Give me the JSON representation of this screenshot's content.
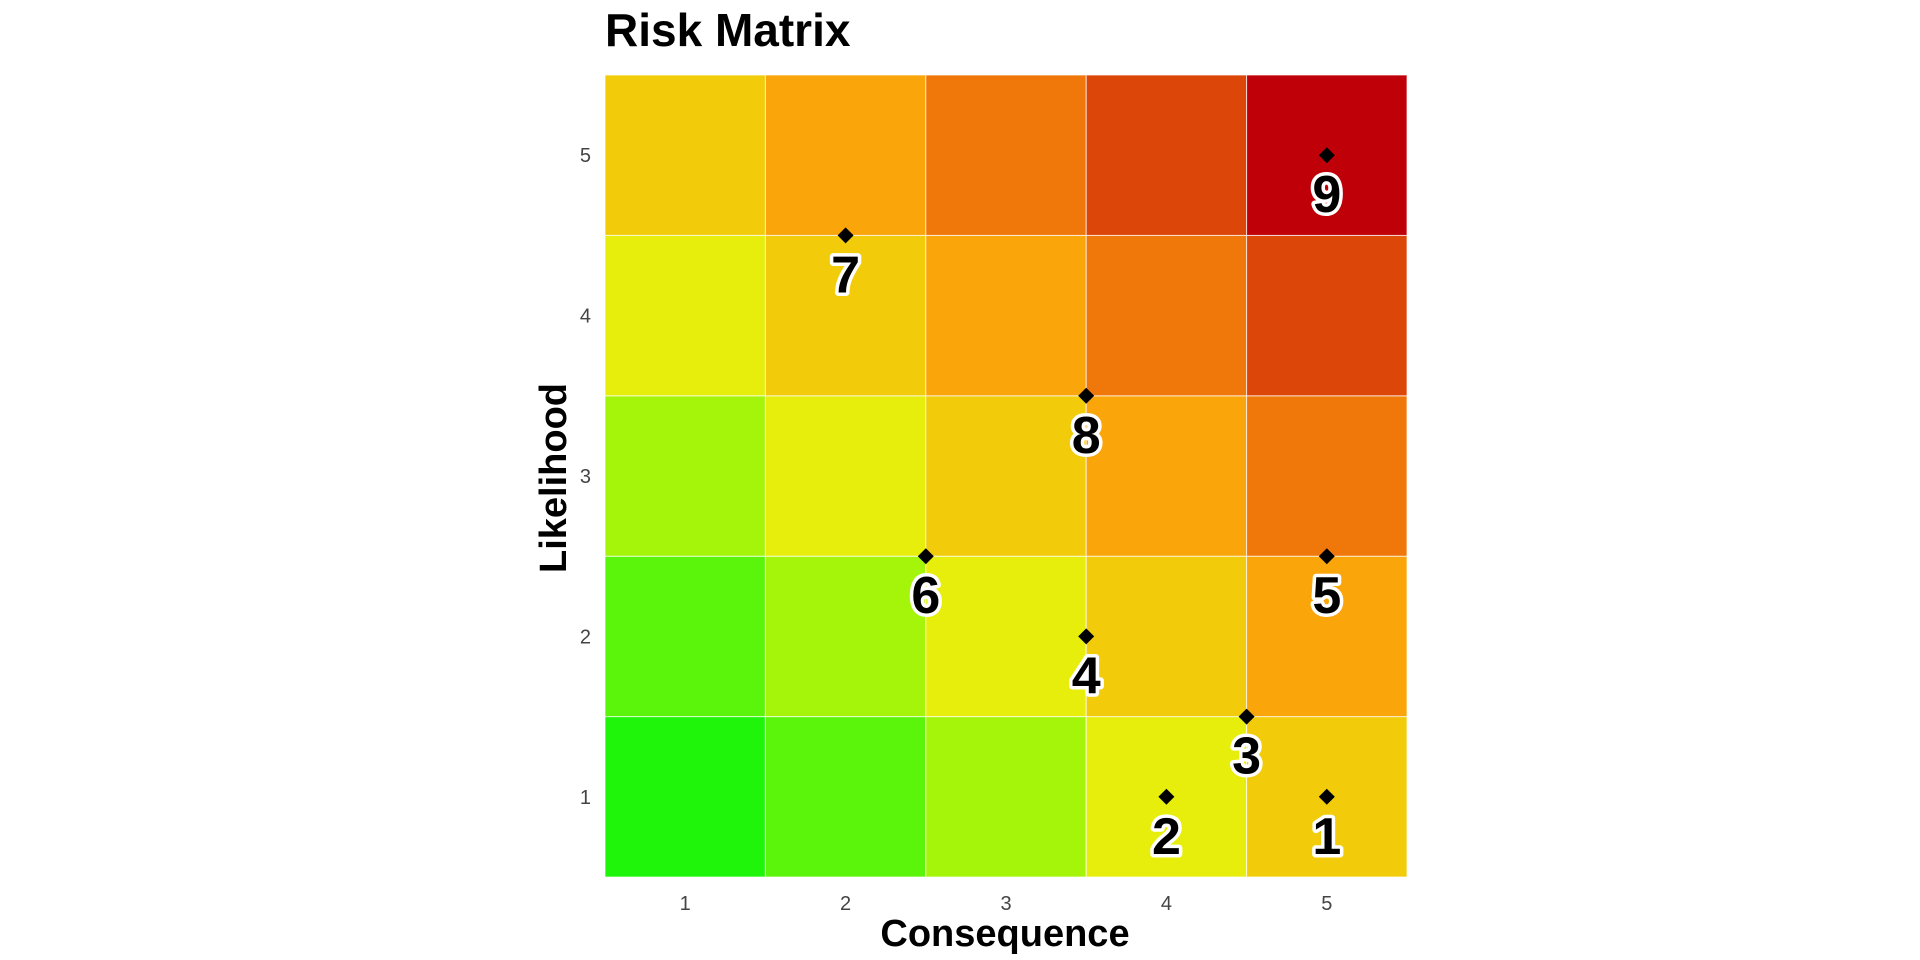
{
  "chart_data": {
    "type": "heatmap",
    "title": "Risk Matrix",
    "xlabel": "Consequence",
    "ylabel": "Likelihood",
    "x_categories": [
      "1",
      "2",
      "3",
      "4",
      "5"
    ],
    "y_categories": [
      "1",
      "2",
      "3",
      "4",
      "5"
    ],
    "xlim": [
      0.5,
      5.5
    ],
    "ylim": [
      0.5,
      5.5
    ],
    "grid": false,
    "cells": [
      {
        "x": 1,
        "y": 1,
        "color": "#1ef50a"
      },
      {
        "x": 2,
        "y": 1,
        "color": "#5af50a"
      },
      {
        "x": 3,
        "y": 1,
        "color": "#a5f50a"
      },
      {
        "x": 4,
        "y": 1,
        "color": "#e8ee0c"
      },
      {
        "x": 5,
        "y": 1,
        "color": "#f2cc0b"
      },
      {
        "x": 1,
        "y": 2,
        "color": "#5af50a"
      },
      {
        "x": 2,
        "y": 2,
        "color": "#a5f50a"
      },
      {
        "x": 3,
        "y": 2,
        "color": "#e8ee0c"
      },
      {
        "x": 4,
        "y": 2,
        "color": "#f2cc0b"
      },
      {
        "x": 5,
        "y": 2,
        "color": "#faa50a"
      },
      {
        "x": 1,
        "y": 3,
        "color": "#a5f50a"
      },
      {
        "x": 2,
        "y": 3,
        "color": "#e8ee0c"
      },
      {
        "x": 3,
        "y": 3,
        "color": "#f2cc0b"
      },
      {
        "x": 4,
        "y": 3,
        "color": "#faa50a"
      },
      {
        "x": 5,
        "y": 3,
        "color": "#f0780a"
      },
      {
        "x": 1,
        "y": 4,
        "color": "#e8ee0c"
      },
      {
        "x": 2,
        "y": 4,
        "color": "#f2cc0b"
      },
      {
        "x": 3,
        "y": 4,
        "color": "#faa50a"
      },
      {
        "x": 4,
        "y": 4,
        "color": "#f0780a"
      },
      {
        "x": 5,
        "y": 4,
        "color": "#dc4608"
      },
      {
        "x": 1,
        "y": 5,
        "color": "#f2cc0b"
      },
      {
        "x": 2,
        "y": 5,
        "color": "#faa50a"
      },
      {
        "x": 3,
        "y": 5,
        "color": "#f0780a"
      },
      {
        "x": 4,
        "y": 5,
        "color": "#dc4608"
      },
      {
        "x": 5,
        "y": 5,
        "color": "#c00008"
      }
    ],
    "points": [
      {
        "label": "1",
        "x": 5,
        "y": 1
      },
      {
        "label": "2",
        "x": 4,
        "y": 1
      },
      {
        "label": "3",
        "x": 4.5,
        "y": 1.5
      },
      {
        "label": "4",
        "x": 3.5,
        "y": 2
      },
      {
        "label": "5",
        "x": 5,
        "y": 2.5
      },
      {
        "label": "6",
        "x": 2.5,
        "y": 2.5
      },
      {
        "label": "7",
        "x": 2,
        "y": 4.5
      },
      {
        "label": "8",
        "x": 3.5,
        "y": 3.5
      },
      {
        "label": "9",
        "x": 5,
        "y": 5
      }
    ],
    "marker": "diamond",
    "marker_color": "#000000"
  }
}
